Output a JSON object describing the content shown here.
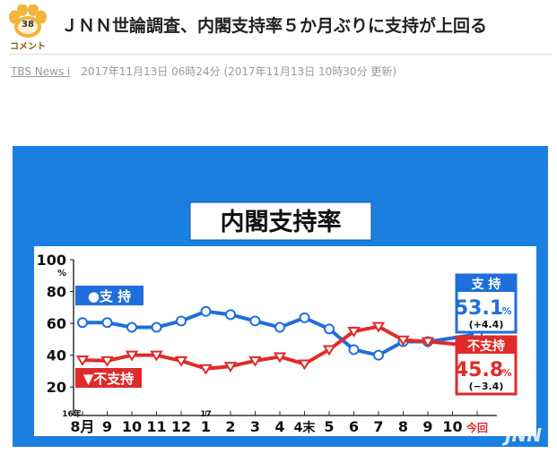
{
  "article": {
    "comment_count": "38",
    "comment_label": "コメント",
    "title": "ＪＮＮ世論調査、内閣支持率５か月ぶりに支持が上回る",
    "source": "TBS News i",
    "published": "2017年11月13日 06時24分",
    "updated": "(2017年11月13日 10時30分 更新)"
  },
  "chart_data": {
    "type": "line",
    "title": "内閣支持率",
    "y_unit": "%",
    "ylim": [
      10,
      100
    ],
    "y_ticks": [
      100,
      80,
      60,
      40,
      20
    ],
    "year_labels": {
      "0": "16年",
      "5": "17"
    },
    "categories": [
      "8月",
      "9",
      "10",
      "11",
      "12",
      "1",
      "2",
      "3",
      "4",
      "4末",
      "5",
      "6",
      "7",
      "8",
      "9",
      "10",
      "今回"
    ],
    "series": [
      {
        "name": "支 持",
        "legend": "●支 持",
        "color": "#1e6fd9",
        "values": [
          60.5,
          60.5,
          57.5,
          57.5,
          61.5,
          67.5,
          65.5,
          61.5,
          57.5,
          63.5,
          56.5,
          43.5,
          40.0,
          48.5,
          48.5,
          null,
          53.1
        ],
        "current": "53.1",
        "change": "(+4.4)"
      },
      {
        "name": "不支持",
        "legend": "▼不支持",
        "color": "#e02a2a",
        "values": [
          37.0,
          36.5,
          40.0,
          40.0,
          36.5,
          31.5,
          33.0,
          36.5,
          39.0,
          34.5,
          43.5,
          55.0,
          58.0,
          49.5,
          48.5,
          null,
          45.8
        ],
        "current": "45.8",
        "change": "(−3.4)"
      }
    ],
    "watermark": "JNN"
  }
}
